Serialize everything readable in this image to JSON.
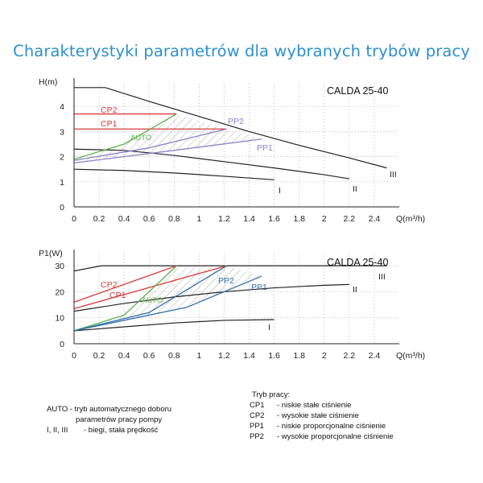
{
  "title": "Charakterystyki parametrów dla wybranych trybów pracy",
  "chart_data": [
    {
      "type": "line",
      "name": "CALDA 25-40",
      "ylabel": "H(m)",
      "xlabel": "Q(m³/h)",
      "xlim": [
        0,
        2.6
      ],
      "ylim": [
        0,
        5
      ],
      "xticks": [
        "0",
        "0.2",
        "0.4",
        "0.6",
        "0.8",
        "1",
        "1.2",
        "1.4",
        "1.6",
        "1.8",
        "2",
        "2.2",
        "2.4"
      ],
      "yticks": [
        "0",
        "1",
        "2",
        "3",
        "4"
      ],
      "grid": true,
      "series": [
        {
          "name": "III",
          "color": "#222222",
          "points": [
            [
              0,
              4.75
            ],
            [
              0.25,
              4.75
            ],
            [
              0.6,
              4.2
            ],
            [
              1.0,
              3.6
            ],
            [
              1.4,
              3.0
            ],
            [
              1.8,
              2.45
            ],
            [
              2.2,
              1.95
            ],
            [
              2.5,
              1.55
            ]
          ]
        },
        {
          "name": "II",
          "color": "#222222",
          "points": [
            [
              0,
              2.3
            ],
            [
              0.4,
              2.25
            ],
            [
              0.8,
              2.05
            ],
            [
              1.2,
              1.8
            ],
            [
              1.6,
              1.55
            ],
            [
              2.0,
              1.28
            ],
            [
              2.2,
              1.12
            ]
          ]
        },
        {
          "name": "I",
          "color": "#222222",
          "points": [
            [
              0,
              1.5
            ],
            [
              0.4,
              1.45
            ],
            [
              0.8,
              1.35
            ],
            [
              1.2,
              1.22
            ],
            [
              1.6,
              1.08
            ]
          ]
        },
        {
          "name": "CP2",
          "color": "#d83a3a",
          "points": [
            [
              0,
              3.7
            ],
            [
              0.82,
              3.7
            ]
          ]
        },
        {
          "name": "CP1",
          "color": "#d83a3a",
          "points": [
            [
              0,
              3.1
            ],
            [
              1.22,
              3.1
            ]
          ]
        },
        {
          "name": "AUTO",
          "color": "#5bb34a",
          "points": [
            [
              0,
              1.9
            ],
            [
              0.4,
              2.5
            ],
            [
              0.82,
              3.7
            ]
          ]
        },
        {
          "name": "PP2",
          "color": "#8b83c8",
          "points": [
            [
              0,
              1.85
            ],
            [
              0.6,
              2.35
            ],
            [
              1.22,
              3.1
            ]
          ]
        },
        {
          "name": "PP1",
          "color": "#8b83c8",
          "points": [
            [
              0,
              1.75
            ],
            [
              0.8,
              2.25
            ],
            [
              1.5,
              2.7
            ]
          ]
        }
      ],
      "labels": {
        "model": "CALDA 25-40",
        "cp2": "CP2",
        "cp1": "CP1",
        "auto": "AUTO",
        "pp2": "PP2",
        "pp1": "PP1",
        "s3": "III",
        "s2": "II",
        "s1": "I"
      }
    },
    {
      "type": "line",
      "name": "CALDA 25-40",
      "ylabel": "P1(W)",
      "xlabel": "Q(m³/h)",
      "xlim": [
        0,
        2.6
      ],
      "ylim": [
        0,
        35
      ],
      "xticks": [
        "0",
        "0.2",
        "0.4",
        "0.6",
        "0.8",
        "1",
        "1.2",
        "1.4",
        "1.6",
        "1.8",
        "2",
        "2.2",
        "2.4"
      ],
      "yticks": [
        "0",
        "10",
        "20",
        "30"
      ],
      "grid": true,
      "series": [
        {
          "name": "III",
          "color": "#222222",
          "points": [
            [
              0,
              28
            ],
            [
              0.22,
              30
            ],
            [
              1.0,
              30
            ],
            [
              2.5,
              30
            ]
          ]
        },
        {
          "name": "II",
          "color": "#222222",
          "points": [
            [
              0,
              12.5
            ],
            [
              0.4,
              15.5
            ],
            [
              0.8,
              18
            ],
            [
              1.2,
              20
            ],
            [
              1.6,
              21.5
            ],
            [
              2.0,
              22.5
            ],
            [
              2.2,
              22.8
            ]
          ]
        },
        {
          "name": "I",
          "color": "#222222",
          "points": [
            [
              0,
              5
            ],
            [
              0.4,
              6.5
            ],
            [
              0.8,
              8
            ],
            [
              1.2,
              9
            ],
            [
              1.6,
              9.3
            ]
          ]
        },
        {
          "name": "CP2",
          "color": "#d83a3a",
          "points": [
            [
              0,
              16
            ],
            [
              0.82,
              30
            ]
          ]
        },
        {
          "name": "CP1",
          "color": "#d83a3a",
          "points": [
            [
              0,
              13.5
            ],
            [
              1.22,
              30
            ]
          ]
        },
        {
          "name": "AUTO",
          "color": "#5bb34a",
          "points": [
            [
              0,
              5
            ],
            [
              0.4,
              11
            ],
            [
              0.82,
              30
            ]
          ]
        },
        {
          "name": "PP2",
          "color": "#2f6fa8",
          "points": [
            [
              0,
              5
            ],
            [
              0.6,
              12
            ],
            [
              1.22,
              30
            ]
          ]
        },
        {
          "name": "PP1",
          "color": "#2f6fa8",
          "points": [
            [
              0,
              5
            ],
            [
              0.9,
              14
            ],
            [
              1.5,
              26
            ]
          ]
        }
      ],
      "labels": {
        "model": "CALDA 25-40",
        "cp2": "CP2",
        "cp1": "CP1",
        "auto": "AUTO",
        "pp2": "PP2",
        "pp1": "PP1",
        "s3": "III",
        "s2": "II",
        "s1": "I"
      }
    }
  ],
  "legend_left": {
    "auto_line1": "AUTO - tryb automatycznego doboru",
    "auto_line2": "parametrów pracy pompy",
    "speeds_key": "I, II, III",
    "speeds_desc": "- biegi, stała prędkość"
  },
  "legend_right": {
    "heading": "Tryb pracy:",
    "rows": [
      {
        "key": "CP1",
        "desc": "- niskie stałe ciśnienie"
      },
      {
        "key": "CP2",
        "desc": "- wysokie stałe ciśnienie"
      },
      {
        "key": "PP1",
        "desc": "- niskie proporcjonalne ciśnienie"
      },
      {
        "key": "PP2",
        "desc": "- wysokie proporcjonalne ciśnienie"
      }
    ]
  }
}
